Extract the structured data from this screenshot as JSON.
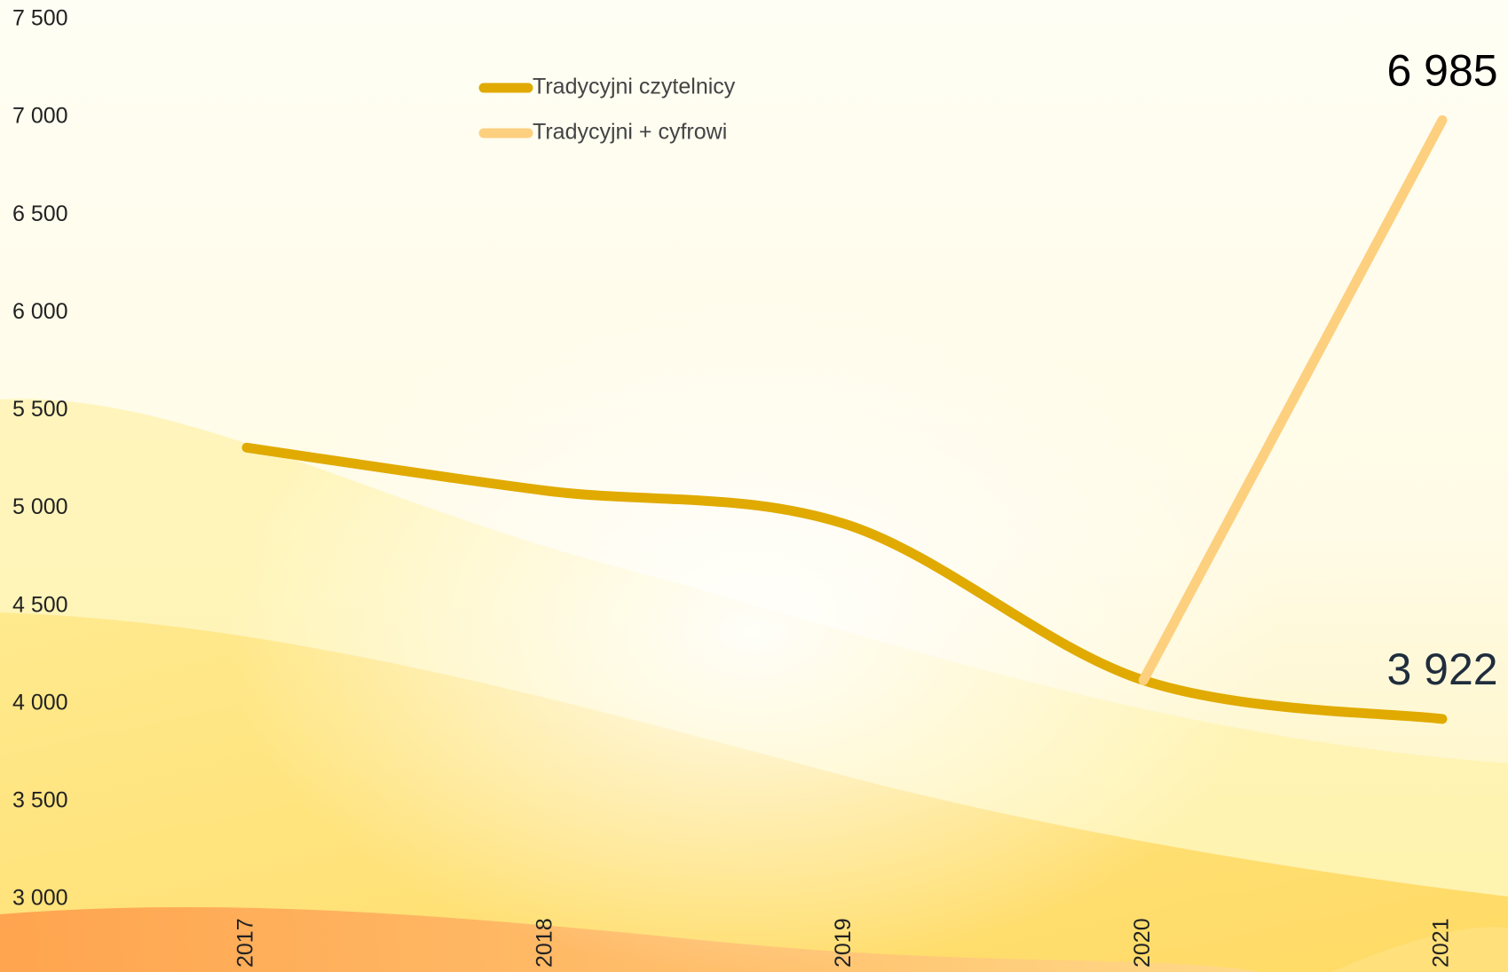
{
  "chart_data": {
    "type": "line",
    "categories": [
      "2017",
      "2018",
      "2019",
      "2020",
      "2021"
    ],
    "series": [
      {
        "name": "Tradycyjni czytelnicy",
        "color": "#e0aa00",
        "values": [
          5310,
          5090,
          4920,
          4120,
          3922
        ],
        "value_labels": [
          null,
          null,
          null,
          null,
          "3 922"
        ],
        "label_color": "#1f2d3d"
      },
      {
        "name": "Tradycyjni + cyfrowi",
        "color": "#fdd07f",
        "values": [
          null,
          null,
          null,
          4120,
          6985
        ],
        "value_labels": [
          null,
          null,
          null,
          null,
          "6 985"
        ],
        "label_color": "#000000"
      }
    ],
    "ylim": [
      3000,
      7500
    ],
    "yticks": [
      {
        "value": 3000,
        "label": "3 000"
      },
      {
        "value": 3500,
        "label": "3 500"
      },
      {
        "value": 4000,
        "label": "4 000"
      },
      {
        "value": 4500,
        "label": "4 500"
      },
      {
        "value": 5000,
        "label": "5 000"
      },
      {
        "value": 5500,
        "label": "5 500"
      },
      {
        "value": 6000,
        "label": "6 000"
      },
      {
        "value": 6500,
        "label": "6 500"
      },
      {
        "value": 7000,
        "label": "7 000"
      },
      {
        "value": 7500,
        "label": "7 500"
      }
    ],
    "grid": false
  }
}
